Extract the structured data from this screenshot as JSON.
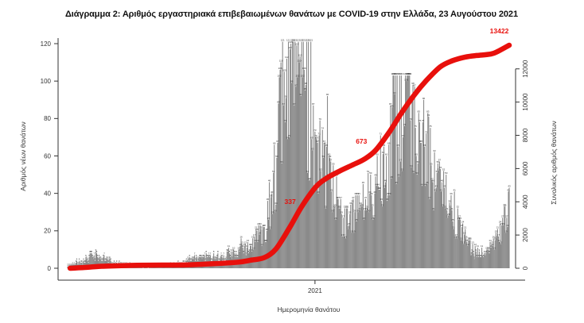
{
  "title": "Διάγραμμα 2: Αριθμός εργαστηριακά επιβεβαιωμένων θανάτων με COVID-19 στην Ελλάδα, 23 Αυγούστου 2021",
  "colors": {
    "bar": "#8a8a8a",
    "bar_value_label": "#2e2e2e",
    "cumulative_line": "#e8100c",
    "annotation": "#e8100c",
    "axis": "#333333",
    "title": "#111111"
  },
  "chart_data": {
    "type": "bar+line",
    "title": "Διάγραμμα 2: Αριθμός εργαστηριακά επιβεβαιωμένων θανάτων με COVID-19 στην Ελλάδα, 23 Αυγούστου 2021",
    "xlabel": "Ημερομηνία θανάτου",
    "x_tick_labels": [
      "2021"
    ],
    "x_tick_dates": [
      "2021-01-01"
    ],
    "x_range": [
      "2020-03-09",
      "2021-08-23"
    ],
    "grid": false,
    "legend": null,
    "left_axis": {
      "label": "Αριθμός νέων θανάτων",
      "ticks": [
        0,
        20,
        40,
        60,
        80,
        100,
        120
      ],
      "range": [
        0,
        121
      ]
    },
    "right_axis": {
      "label": "Συνολικός αριθμός θανάτων",
      "ticks": [
        0,
        2000,
        4000,
        6000,
        8000,
        10000,
        12000
      ],
      "range": [
        0,
        13422
      ]
    },
    "series": [
      {
        "name": "daily_deaths",
        "type": "bar",
        "axis": "left",
        "sampling": "weekly_envelope",
        "week_start_date": "2020-03-09",
        "values": [
          0.5,
          1.5,
          3,
          4.5,
          6,
          6.5,
          5,
          4,
          2.5,
          2,
          1.5,
          1,
          1,
          0.7,
          0.7,
          1,
          1,
          1.2,
          1.5,
          2,
          3,
          4,
          5,
          5.5,
          6,
          6,
          5.5,
          6,
          7,
          8,
          9,
          11,
          13,
          16,
          24,
          38,
          60,
          85,
          103,
          112,
          100,
          88,
          75,
          62,
          50,
          42,
          38,
          32,
          27,
          26,
          29,
          34,
          40,
          48,
          55,
          64,
          75,
          88,
          95,
          90,
          80,
          70,
          60,
          52,
          45,
          36,
          29,
          23,
          18,
          12,
          9,
          7.5,
          8,
          11,
          16,
          23,
          30
        ],
        "peak_value": 121
      },
      {
        "name": "cumulative_deaths",
        "type": "line",
        "axis": "right",
        "points": [
          [
            "2020-03-12",
            1
          ],
          [
            "2020-04-01",
            53
          ],
          [
            "2020-04-15",
            110
          ],
          [
            "2020-05-01",
            140
          ],
          [
            "2020-06-01",
            175
          ],
          [
            "2020-07-01",
            192
          ],
          [
            "2020-08-01",
            206
          ],
          [
            "2020-09-01",
            271
          ],
          [
            "2020-10-01",
            370
          ],
          [
            "2020-10-15",
            482
          ],
          [
            "2020-11-01",
            640
          ],
          [
            "2020-11-15",
            1165
          ],
          [
            "2020-12-01",
            2406
          ],
          [
            "2020-12-15",
            3625
          ],
          [
            "2021-01-01",
            4838
          ],
          [
            "2021-01-15",
            5421
          ],
          [
            "2021-02-01",
            5878
          ],
          [
            "2021-02-15",
            6210
          ],
          [
            "2021-03-01",
            6550
          ],
          [
            "2021-03-15",
            7091
          ],
          [
            "2021-04-01",
            8232
          ],
          [
            "2021-04-15",
            9330
          ],
          [
            "2021-05-01",
            10453
          ],
          [
            "2021-05-15",
            11290
          ],
          [
            "2021-06-01",
            12122
          ],
          [
            "2021-06-15",
            12480
          ],
          [
            "2021-07-01",
            12710
          ],
          [
            "2021-07-15",
            12806
          ],
          [
            "2021-08-01",
            12892
          ],
          [
            "2021-08-10",
            13070
          ],
          [
            "2021-08-23",
            13422
          ]
        ]
      }
    ],
    "annotations": [
      {
        "text": "337",
        "date": "2020-12-02",
        "value": 3870,
        "under_line": true
      },
      {
        "text": "673",
        "date": "2021-02-26",
        "value": 7500,
        "under_line": true
      },
      {
        "text": "13422",
        "date": "2021-08-11",
        "value": 14150,
        "under_line": false
      }
    ]
  }
}
